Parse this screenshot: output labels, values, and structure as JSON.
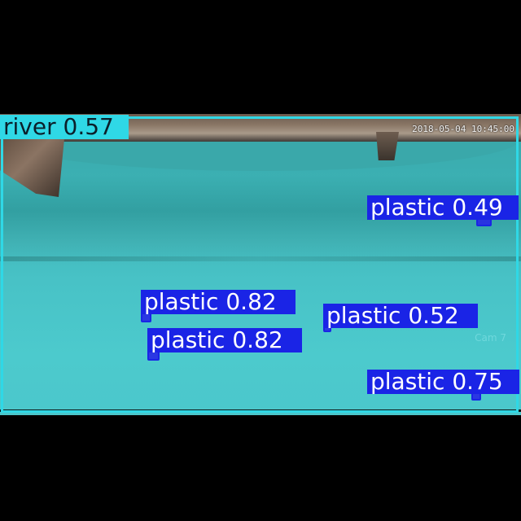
{
  "overlay": {
    "timestamp": "2018-05-04 10:45:00",
    "camera": "Cam 7"
  },
  "detections": [
    {
      "label": "river 0.57",
      "class": "river",
      "score": 0.57,
      "color": "#2fd8e6"
    },
    {
      "label": "plastic 0.49",
      "class": "plastic",
      "score": 0.49,
      "color": "#1a24e6"
    },
    {
      "label": "plastic 0.82",
      "class": "plastic",
      "score": 0.82,
      "color": "#1a24e6"
    },
    {
      "label": "plastic 0.52",
      "class": "plastic",
      "score": 0.52,
      "color": "#1a24e6"
    },
    {
      "label": "plastic 0.82",
      "class": "plastic",
      "score": 0.82,
      "color": "#1a24e6"
    },
    {
      "label": "plastic 0.75",
      "class": "plastic",
      "score": 0.75,
      "color": "#1a24e6"
    }
  ]
}
